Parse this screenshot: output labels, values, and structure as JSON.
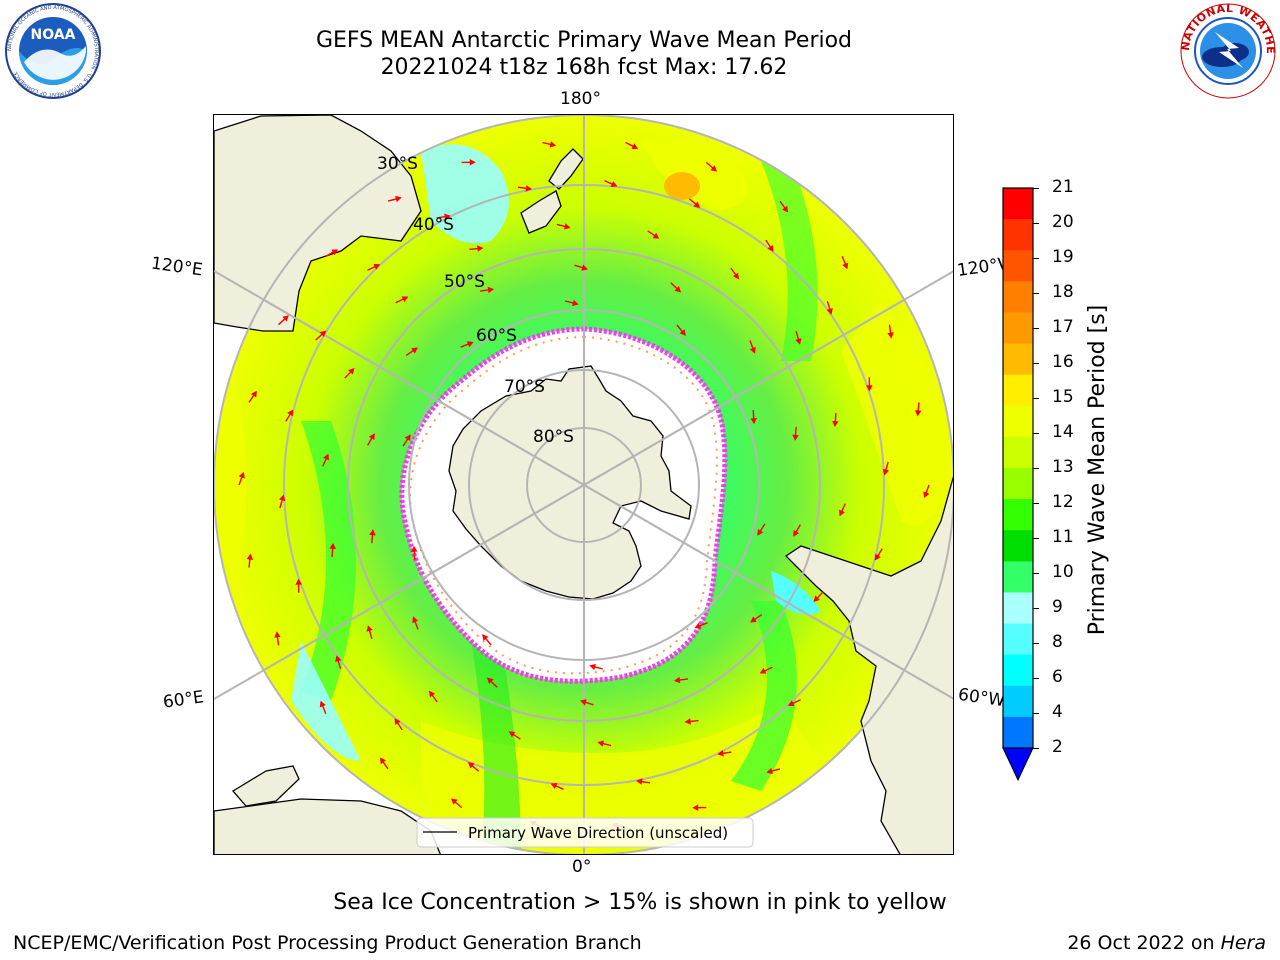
{
  "title_line1": "GEFS MEAN Antarctic Primary Wave Mean Period",
  "title_line2": "20221024 t18z 168h fcst   Max: 17.62",
  "logos": {
    "left_label": "NOAA",
    "left_ring_text": "NATIONAL OCEANIC AND ATMOSPHERIC ADMINISTRATION · U.S. DEPARTMENT OF COMMERCE",
    "right_ring_text": "NATIONAL WEATHER SERVICE"
  },
  "map": {
    "projection": "south-polar-stereographic",
    "longitude_labels": {
      "top": "180°",
      "bottom": "0°",
      "upper_left": "120°E",
      "upper_right": "120°W",
      "lower_left": "60°E",
      "lower_right": "60°W"
    },
    "latitude_labels": [
      "30°S",
      "40°S",
      "50°S",
      "60°S",
      "70°S",
      "80°S"
    ],
    "legend_label": "Primary Wave Direction (unscaled)",
    "arrow_color": "#ff0000",
    "land_color": "#efefdb",
    "ice_note_colors": [
      "#ff33ff",
      "#ff9955",
      "#ffcc66"
    ]
  },
  "colorbar": {
    "label": "Primary Wave Mean Period [s]",
    "ticks": [
      "21",
      "20",
      "19",
      "18",
      "17",
      "16",
      "15",
      "14",
      "13",
      "12",
      "11",
      "10",
      "9",
      "8",
      "6",
      "4",
      "2"
    ],
    "colors": [
      "#ff0000",
      "#ff3300",
      "#ff5500",
      "#ff7f00",
      "#ff9900",
      "#ffbb00",
      "#ffee00",
      "#eeff00",
      "#ccff00",
      "#99ff00",
      "#33ff00",
      "#00dd00",
      "#33ff66",
      "#aaffff",
      "#55ffff",
      "#00ffff",
      "#00ccff",
      "#0077ff"
    ],
    "under_color": "#0000ff"
  },
  "caption": "Sea Ice Concentration > 15% is shown in pink to yellow",
  "footer_left": "NCEP/EMC/Verification Post Processing Product Generation Branch",
  "footer_right_prefix": "26 Oct 2022 on ",
  "footer_right_machine": "Hera"
}
